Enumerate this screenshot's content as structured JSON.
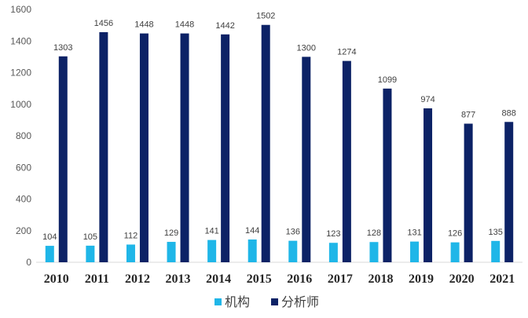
{
  "chart_data": {
    "type": "bar",
    "categories": [
      "2010",
      "2011",
      "2012",
      "2013",
      "2014",
      "2015",
      "2016",
      "2017",
      "2018",
      "2019",
      "2020",
      "2021"
    ],
    "series": [
      {
        "name": "机构",
        "color": "#1fb6e8",
        "values": [
          104,
          105,
          112,
          129,
          141,
          144,
          136,
          123,
          128,
          131,
          126,
          135
        ]
      },
      {
        "name": "分析师",
        "color": "#0c2266",
        "values": [
          1303,
          1456,
          1448,
          1448,
          1442,
          1502,
          1300,
          1274,
          1099,
          974,
          877,
          888
        ]
      }
    ],
    "ylim": [
      0,
      1600
    ],
    "yticks": [
      0,
      200,
      400,
      600,
      800,
      1000,
      1200,
      1400,
      1600
    ],
    "legend_position": "bottom",
    "grid": false
  }
}
